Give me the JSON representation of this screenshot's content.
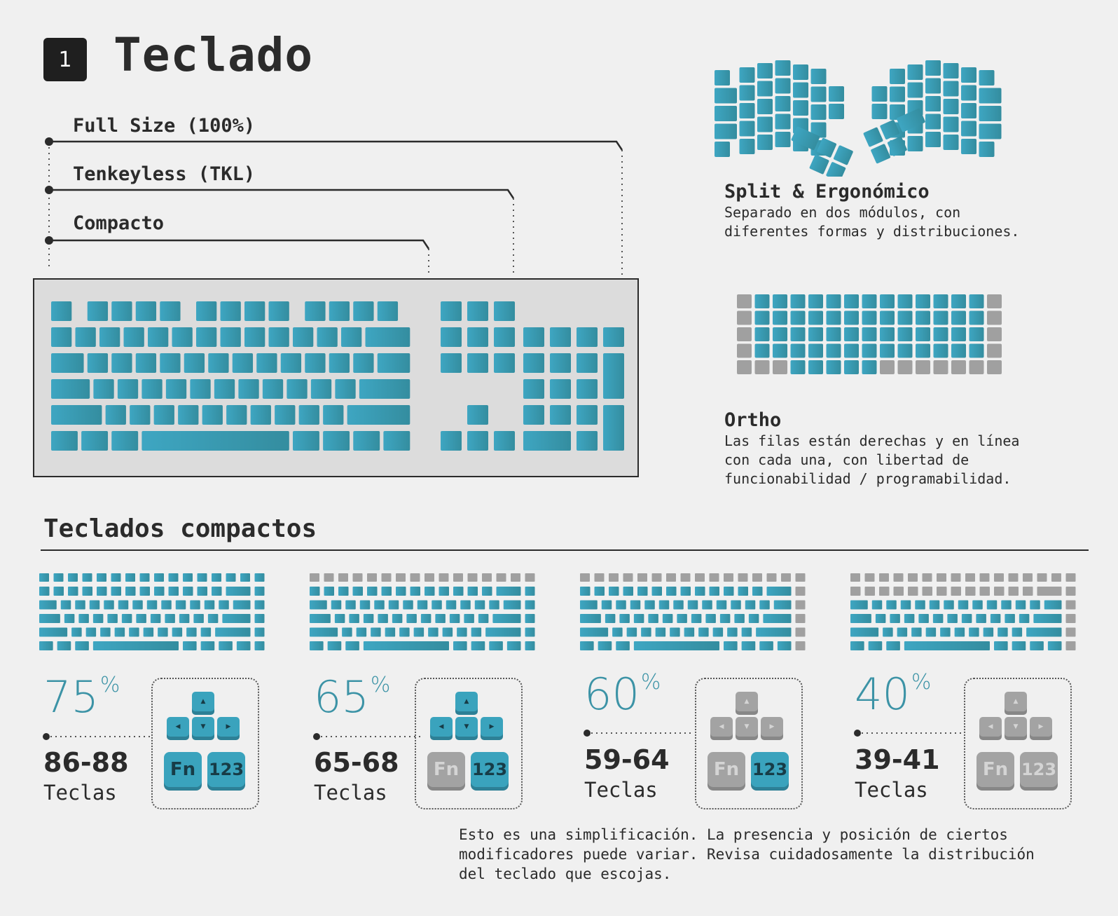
{
  "header": {
    "number": "1",
    "title": "Teclado"
  },
  "sizes": [
    {
      "label": "Full Size (100%)"
    },
    {
      "label": "Tenkeyless (TKL)"
    },
    {
      "label": "Compacto"
    }
  ],
  "split": {
    "title": "Split & Ergonómico",
    "desc_lines": [
      "Separado en dos módulos, con",
      "diferentes formas y distribuciones."
    ]
  },
  "ortho": {
    "title": "Ortho",
    "desc_lines": [
      "Las filas están derechas y en línea",
      "con cada una, con libertad de",
      "funcionabilidad / programabilidad."
    ]
  },
  "compact": {
    "title": "Teclados compactos",
    "items": [
      {
        "percent": "75",
        "percent_sign": "%",
        "keys": "86-88",
        "keys_label": "Teclas",
        "arrows_active": true,
        "fn_active": true,
        "num_active": true,
        "fn_label": "Fn",
        "num_label": "123"
      },
      {
        "percent": "65",
        "percent_sign": "%",
        "keys": "65-68",
        "keys_label": "Teclas",
        "arrows_active": true,
        "fn_active": false,
        "num_active": true,
        "fn_label": "Fn",
        "num_label": "123"
      },
      {
        "percent": "60",
        "percent_sign": "%",
        "keys": "59-64",
        "keys_label": "Teclas",
        "arrows_active": false,
        "fn_active": false,
        "num_active": true,
        "fn_label": "Fn",
        "num_label": "123"
      },
      {
        "percent": "40",
        "percent_sign": "%",
        "keys": "39-41",
        "keys_label": "Teclas",
        "arrows_active": false,
        "fn_active": false,
        "num_active": false,
        "fn_label": "Fn",
        "num_label": "123"
      }
    ]
  },
  "note_lines": [
    "Esto es una simplificación. La presencia y posición de ciertos",
    "modificadores puede variar. Revisa cuidadosamente la distribución",
    "del teclado que escojas."
  ],
  "colors": {
    "key_light": "#3ea6c2",
    "key_dark": "#348d9f",
    "key_gray": "#a0a0a0",
    "board_bg": "#dcdcdc"
  }
}
